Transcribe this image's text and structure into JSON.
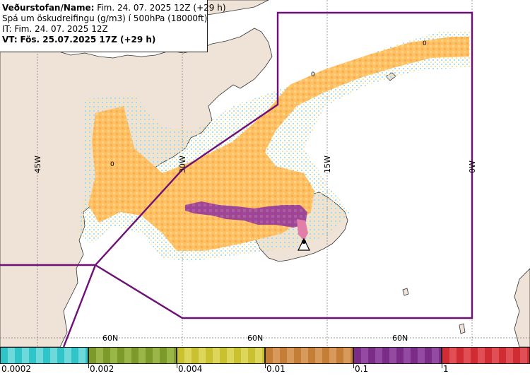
{
  "info": {
    "line1_label": "Veðurstofan/Name:",
    "line1_value": "Fim. 24. 07. 2025 12Z (+29 h)",
    "line2": "Spá um öskudreifingu (g/m3) í 500hPa (18000ft)",
    "line3": "IT: Fim. 24. 07. 2025 12Z",
    "line4_label": "VT:",
    "line4_value": "Fös. 25.07.2025 17Z (+29 h)"
  },
  "map": {
    "longitude_labels": [
      "45W",
      "30W",
      "15W",
      "0W"
    ],
    "latitude_labels": [
      "60N",
      "60N",
      "60N"
    ],
    "contour_labels": [
      "0",
      "0",
      "0"
    ],
    "colors": {
      "ocean": "#ffffff",
      "land": "#efe2d6",
      "coast": "#333333",
      "grid": "#777777",
      "fir_boundary": "#6e1077",
      "ash_low": "#ffb84d",
      "ash_very_low": "#f7d774",
      "ash_trace": "#b8e6e0",
      "ash_mid": "#9c3d9c",
      "ash_high": "#e27ea8",
      "volcano_marker": "#000000"
    }
  },
  "legend": {
    "classes": [
      {
        "color": "#2fc5c8",
        "label": "0.0002"
      },
      {
        "color": "#7c9a2a",
        "label": "0.002"
      },
      {
        "color": "#c9c12f",
        "label": "0.004"
      },
      {
        "color": "#c57e35",
        "label": "0.01"
      },
      {
        "color": "#7a2c86",
        "label": "0.1"
      },
      {
        "color": "#cf2c33",
        "label": "1"
      }
    ]
  }
}
